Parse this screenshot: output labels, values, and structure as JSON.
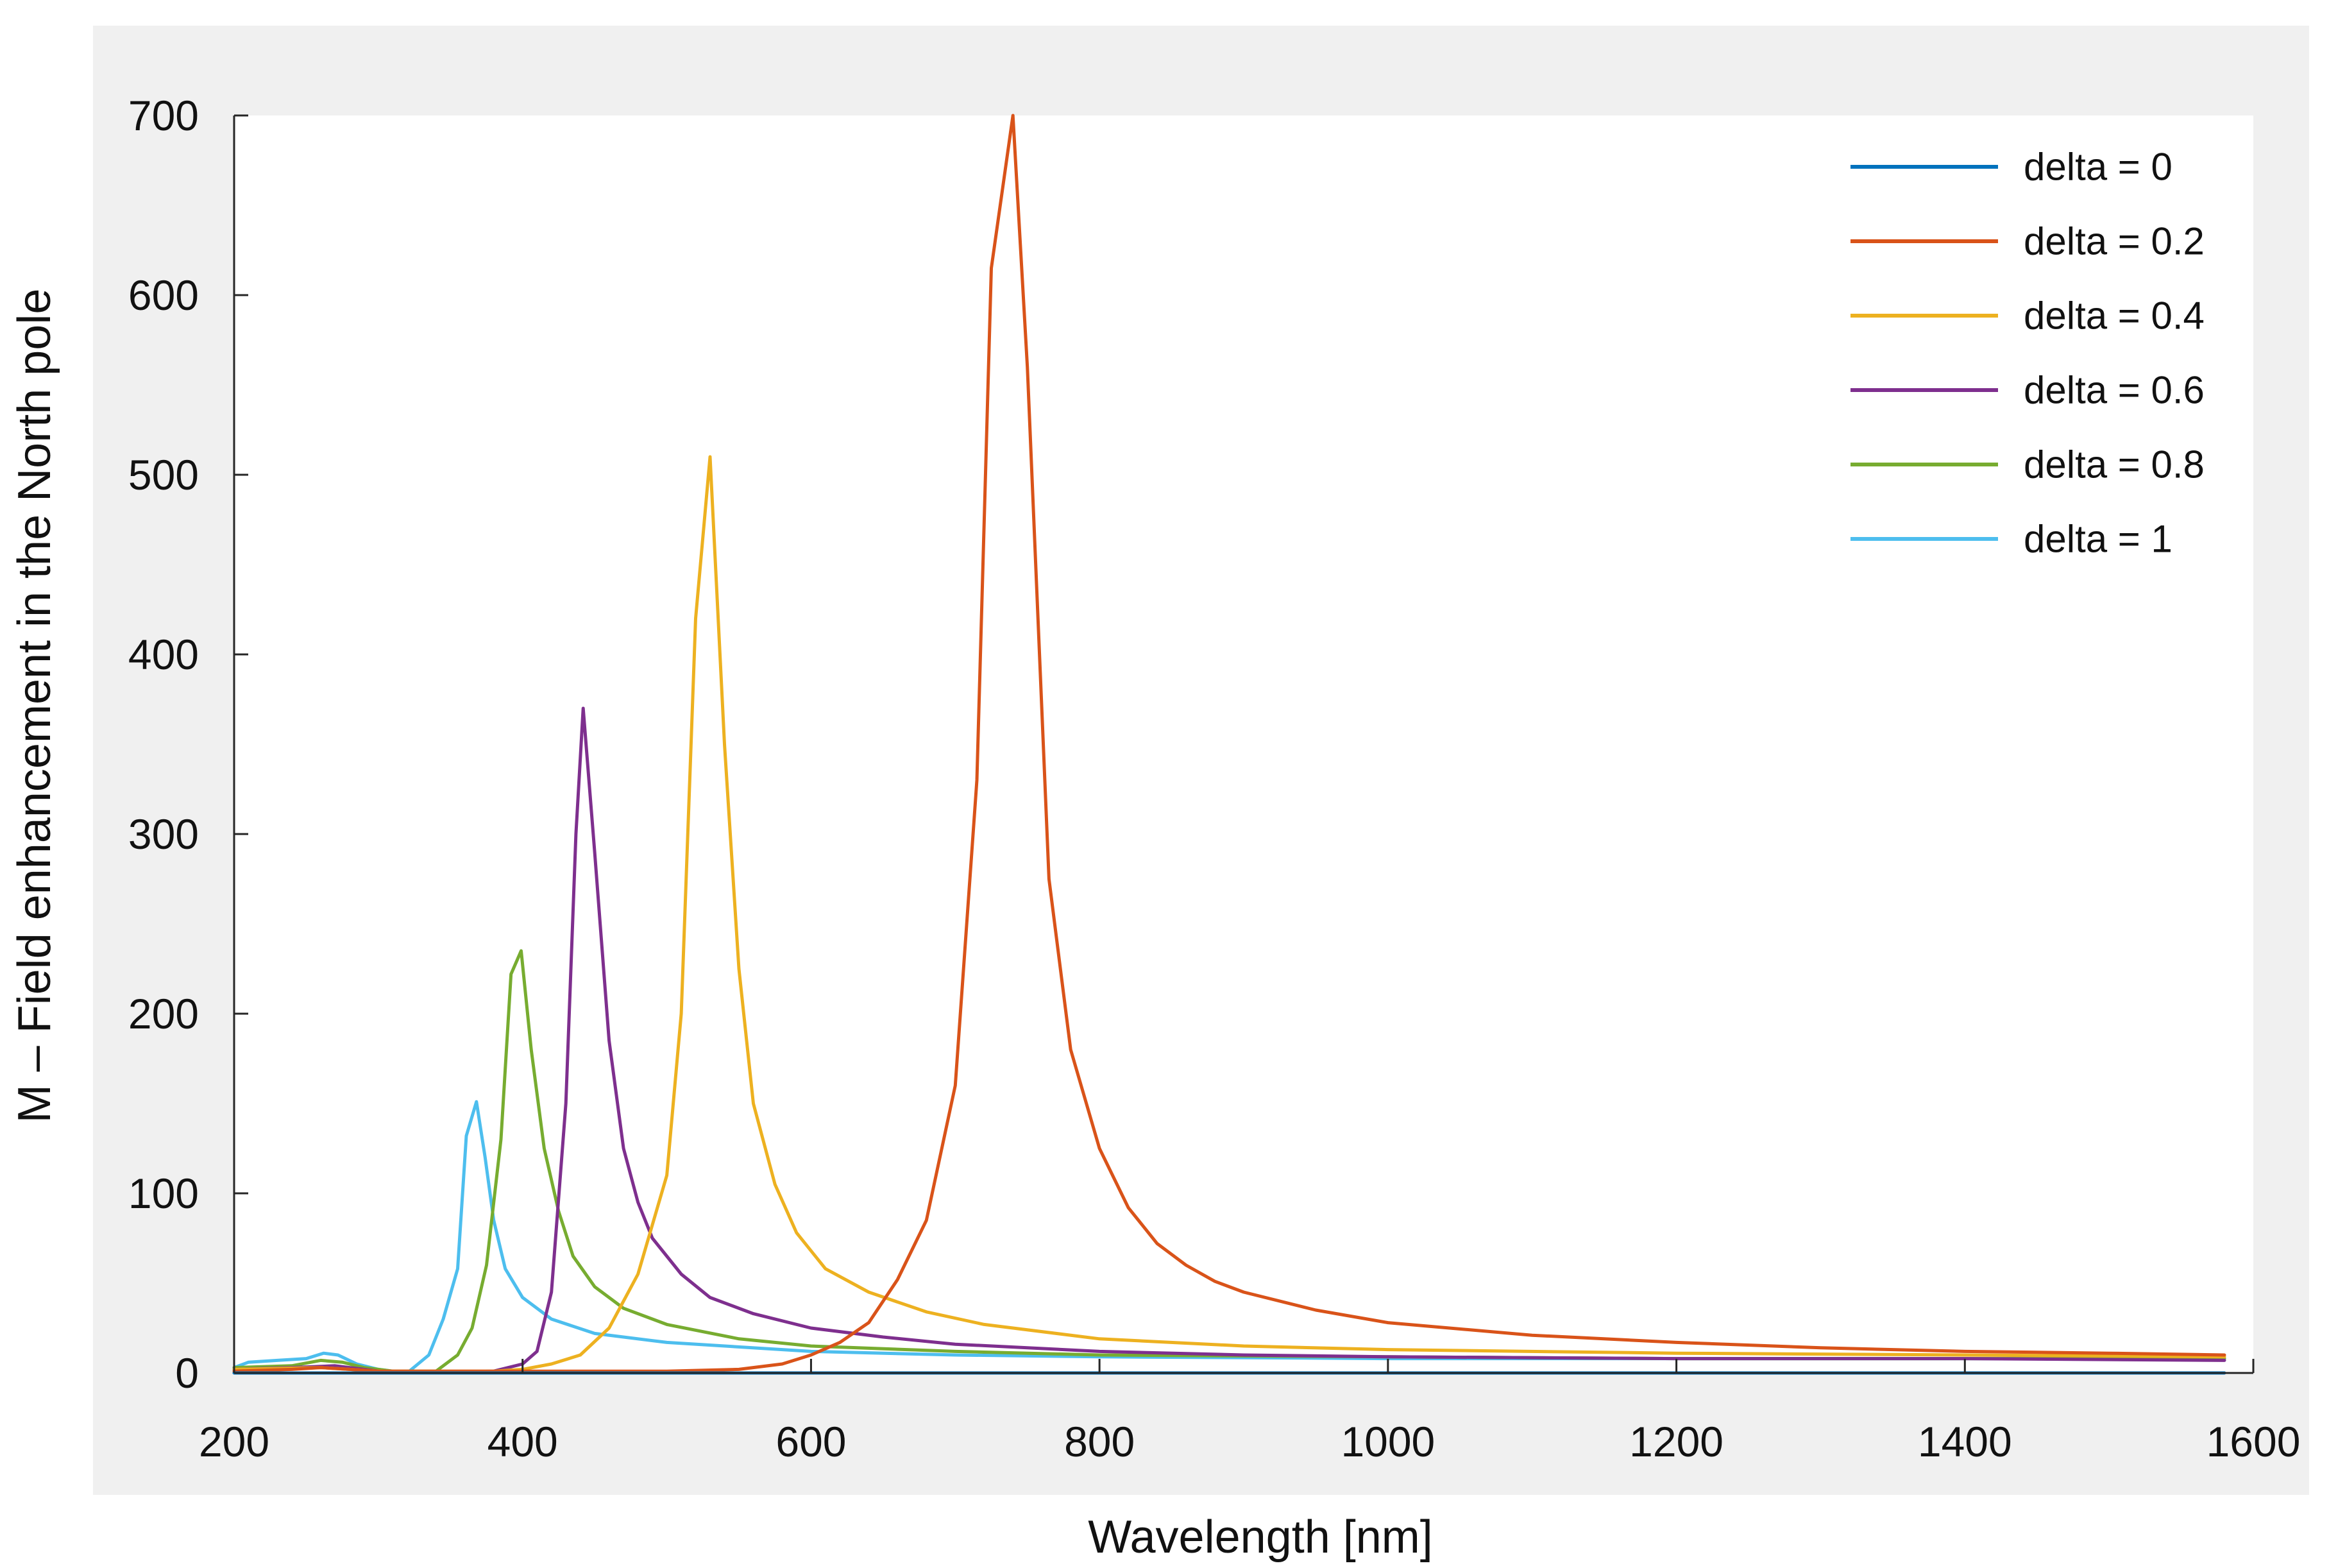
{
  "chart_data": {
    "type": "line",
    "title": "",
    "xlabel": "Wavelength [nm]",
    "ylabel": "M – Field enhancement in the North pole",
    "xlim": [
      200,
      1600
    ],
    "ylim": [
      0,
      700
    ],
    "xticks": [
      "200",
      "400",
      "600",
      "800",
      "1000",
      "1200",
      "1400",
      "1600"
    ],
    "yticks": [
      "0",
      "100",
      "200",
      "300",
      "400",
      "500",
      "600",
      "700"
    ],
    "grid": false,
    "legend_position": "top-right",
    "series": [
      {
        "name": "delta = 0",
        "color": "#0072BD",
        "points": [
          [
            200,
            0
          ],
          [
            400,
            0
          ],
          [
            800,
            0
          ],
          [
            1200,
            0
          ],
          [
            1580,
            0
          ]
        ]
      },
      {
        "name": "delta = 0.2",
        "color": "#D95319",
        "points": [
          [
            200,
            1
          ],
          [
            240,
            2
          ],
          [
            260,
            3
          ],
          [
            280,
            2
          ],
          [
            300,
            1
          ],
          [
            400,
            1
          ],
          [
            500,
            1
          ],
          [
            550,
            2
          ],
          [
            580,
            5
          ],
          [
            600,
            10
          ],
          [
            620,
            17
          ],
          [
            640,
            28
          ],
          [
            660,
            52
          ],
          [
            680,
            85
          ],
          [
            700,
            160
          ],
          [
            715,
            330
          ],
          [
            725,
            615
          ],
          [
            740,
            700
          ],
          [
            750,
            560
          ],
          [
            765,
            275
          ],
          [
            780,
            180
          ],
          [
            800,
            125
          ],
          [
            820,
            92
          ],
          [
            840,
            72
          ],
          [
            860,
            60
          ],
          [
            880,
            51
          ],
          [
            900,
            45
          ],
          [
            950,
            35
          ],
          [
            1000,
            28
          ],
          [
            1100,
            21
          ],
          [
            1200,
            17
          ],
          [
            1300,
            14
          ],
          [
            1400,
            12
          ],
          [
            1500,
            11
          ],
          [
            1580,
            10
          ]
        ]
      },
      {
        "name": "delta = 0.4",
        "color": "#EDB120",
        "points": [
          [
            200,
            2
          ],
          [
            260,
            3
          ],
          [
            280,
            2
          ],
          [
            300,
            1
          ],
          [
            380,
            1
          ],
          [
            400,
            2
          ],
          [
            420,
            5
          ],
          [
            440,
            10
          ],
          [
            460,
            25
          ],
          [
            480,
            55
          ],
          [
            500,
            110
          ],
          [
            510,
            200
          ],
          [
            520,
            420
          ],
          [
            530,
            510
          ],
          [
            540,
            350
          ],
          [
            550,
            225
          ],
          [
            560,
            150
          ],
          [
            575,
            105
          ],
          [
            590,
            78
          ],
          [
            610,
            58
          ],
          [
            640,
            45
          ],
          [
            680,
            34
          ],
          [
            720,
            27
          ],
          [
            800,
            19
          ],
          [
            900,
            15
          ],
          [
            1000,
            13
          ],
          [
            1200,
            11
          ],
          [
            1400,
            10
          ],
          [
            1580,
            9
          ]
        ]
      },
      {
        "name": "delta = 0.6",
        "color": "#7E2F8E",
        "points": [
          [
            200,
            2
          ],
          [
            240,
            3
          ],
          [
            270,
            4
          ],
          [
            290,
            2
          ],
          [
            310,
            0
          ],
          [
            380,
            1
          ],
          [
            400,
            5
          ],
          [
            410,
            12
          ],
          [
            420,
            45
          ],
          [
            430,
            150
          ],
          [
            437,
            300
          ],
          [
            442,
            370
          ],
          [
            450,
            290
          ],
          [
            460,
            185
          ],
          [
            470,
            125
          ],
          [
            480,
            95
          ],
          [
            490,
            75
          ],
          [
            510,
            55
          ],
          [
            530,
            42
          ],
          [
            560,
            33
          ],
          [
            600,
            25
          ],
          [
            650,
            20
          ],
          [
            700,
            16
          ],
          [
            800,
            12
          ],
          [
            900,
            10
          ],
          [
            1000,
            9
          ],
          [
            1200,
            8
          ],
          [
            1400,
            8
          ],
          [
            1580,
            7
          ]
        ]
      },
      {
        "name": "delta = 0.8",
        "color": "#77AC30",
        "points": [
          [
            200,
            3
          ],
          [
            240,
            4
          ],
          [
            260,
            7
          ],
          [
            275,
            6
          ],
          [
            290,
            3
          ],
          [
            310,
            1
          ],
          [
            340,
            1
          ],
          [
            355,
            10
          ],
          [
            365,
            25
          ],
          [
            375,
            60
          ],
          [
            385,
            130
          ],
          [
            392,
            222
          ],
          [
            399,
            235
          ],
          [
            406,
            180
          ],
          [
            415,
            125
          ],
          [
            425,
            90
          ],
          [
            435,
            65
          ],
          [
            450,
            48
          ],
          [
            470,
            36
          ],
          [
            500,
            27
          ],
          [
            550,
            19
          ],
          [
            600,
            15
          ],
          [
            700,
            12
          ],
          [
            800,
            10
          ],
          [
            1000,
            9
          ],
          [
            1200,
            8
          ],
          [
            1400,
            8
          ],
          [
            1580,
            8
          ]
        ]
      },
      {
        "name": "delta = 1",
        "color": "#4DBEEE",
        "points": [
          [
            200,
            3
          ],
          [
            210,
            6
          ],
          [
            230,
            7
          ],
          [
            250,
            8
          ],
          [
            262,
            11
          ],
          [
            272,
            10
          ],
          [
            285,
            5
          ],
          [
            300,
            2
          ],
          [
            320,
            0
          ],
          [
            335,
            10
          ],
          [
            345,
            30
          ],
          [
            355,
            58
          ],
          [
            361,
            132
          ],
          [
            368,
            151
          ],
          [
            374,
            120
          ],
          [
            380,
            85
          ],
          [
            388,
            58
          ],
          [
            400,
            42
          ],
          [
            420,
            30
          ],
          [
            450,
            22
          ],
          [
            500,
            17
          ],
          [
            600,
            12
          ],
          [
            700,
            10
          ],
          [
            800,
            9
          ],
          [
            1000,
            8
          ],
          [
            1200,
            8
          ],
          [
            1400,
            8
          ],
          [
            1580,
            8
          ]
        ]
      }
    ]
  }
}
